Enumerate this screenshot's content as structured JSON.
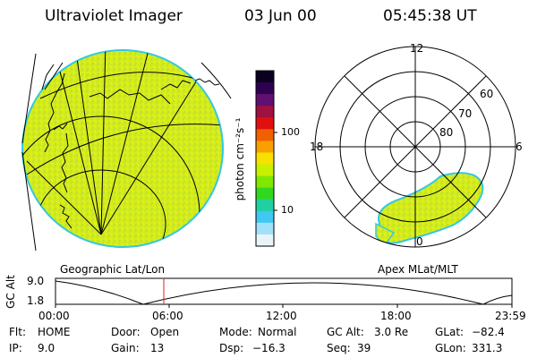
{
  "header": {
    "instrument": "Ultraviolet Imager",
    "date": "03 Jun 00",
    "time": "05:45:38 UT"
  },
  "geo_panel": {
    "label": "Geographic Lat/Lon"
  },
  "colorbar": {
    "unit_label": "photon cm⁻²s⁻¹",
    "ticks": [
      "100",
      "10"
    ],
    "colors": [
      "#0a0020",
      "#300050",
      "#601070",
      "#a01040",
      "#e01010",
      "#f06000",
      "#f8a000",
      "#f8e000",
      "#c8f000",
      "#80e800",
      "#30d820",
      "#20d0a0",
      "#40c8f0",
      "#a0e0f8",
      "#e8f4f8"
    ]
  },
  "polar_panel": {
    "label": "Apex MLat/MLT",
    "lat_labels": [
      "60",
      "70",
      "80"
    ],
    "mlt_labels": {
      "top": "12",
      "left": "18",
      "right": "6",
      "bottom": "0"
    }
  },
  "altitude_plot": {
    "ylabel": "GC Alt",
    "y_ticks": [
      "9.0",
      "1.8"
    ],
    "x_ticks": [
      "00:00",
      "06:00",
      "12:00",
      "18:00",
      "23:59"
    ],
    "marker_color": "#e02020"
  },
  "status": {
    "flt_label": "Flt:",
    "flt_value": "HOME",
    "ip_label": "IP:",
    "ip_value": "9.0",
    "door_label": "Door:",
    "door_value": "Open",
    "gain_label": "Gain:",
    "gain_value": "13",
    "mode_label": "Mode:",
    "mode_value": "Normal",
    "dsp_label": "Dsp:",
    "dsp_value": "−16.3",
    "gcalt_label": "GC Alt:",
    "gcalt_value": "3.0 Re",
    "seq_label": "Seq:",
    "seq_value": "39",
    "glat_label": "GLat:",
    "glat_value": "−82.4",
    "glon_label": "GLon:",
    "glon_value": "331.3"
  }
}
